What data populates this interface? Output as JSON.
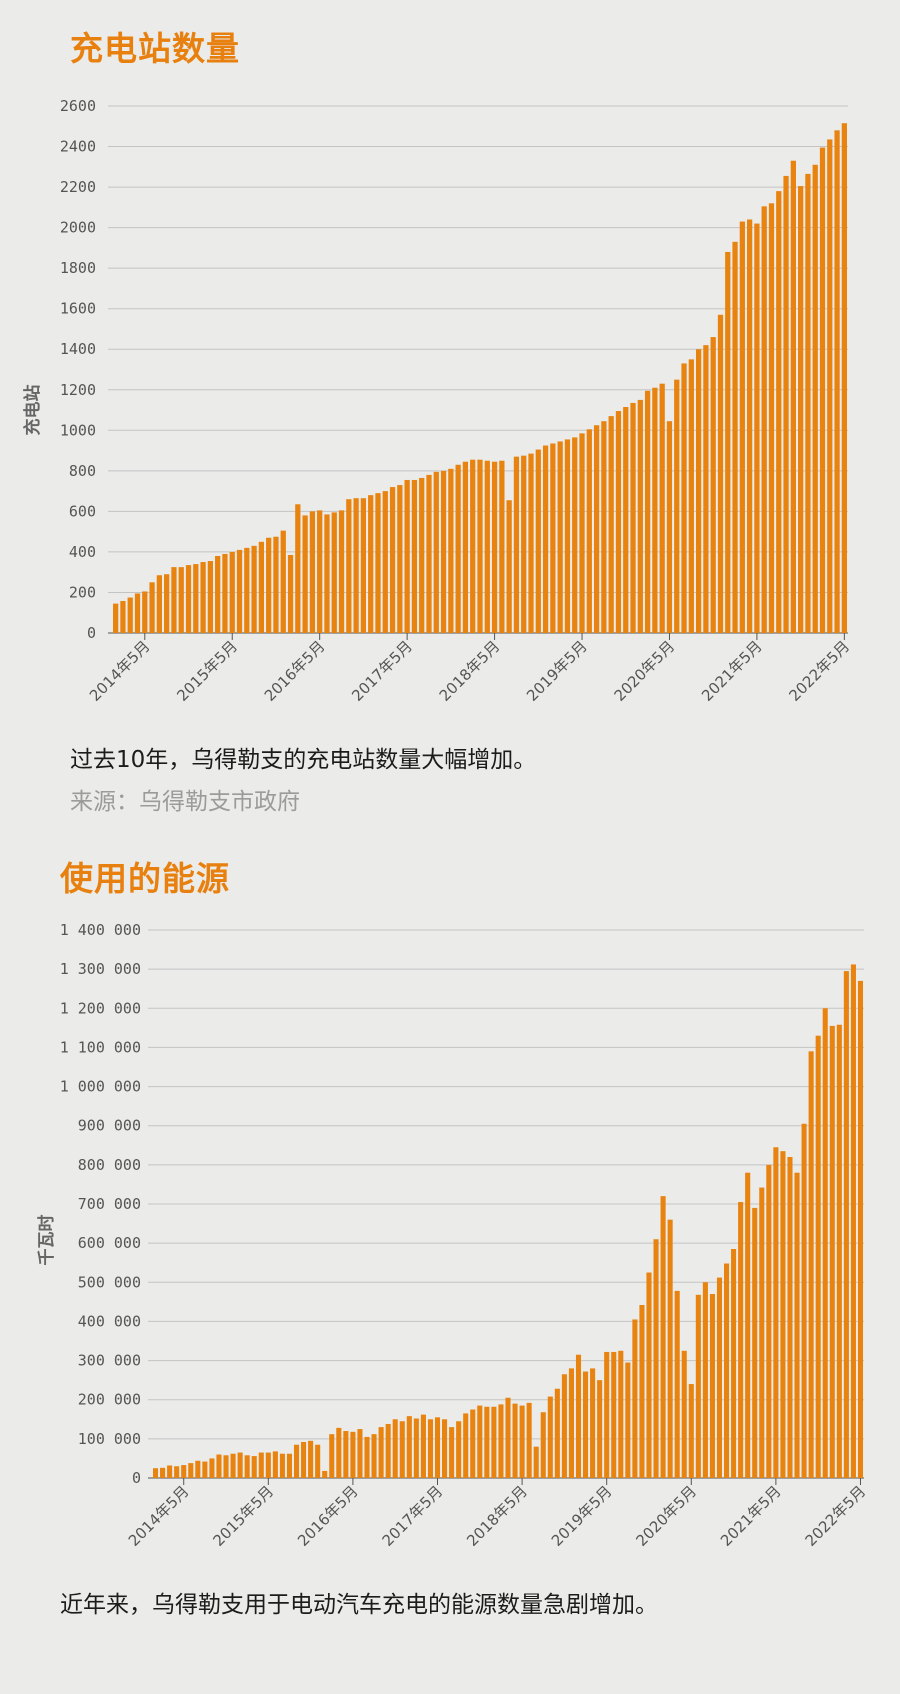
{
  "chart1": {
    "title": "充电站数量",
    "caption": "过去10年，乌得勒支的充电站数量大幅增加。",
    "source": "来源：乌得勒支市政府"
  },
  "chart2": {
    "title": "使用的能源",
    "caption": "近年来，乌得勒支用于电动汽车充电的能源数量急剧增加。"
  },
  "colors": {
    "bar": "#e8830f",
    "title": "#e8800f",
    "grid": "#c4c4c4",
    "background": "#ebebe9"
  },
  "chart_data": [
    {
      "type": "bar",
      "title": "充电站数量",
      "ylabel": "充电站",
      "xlabel": "",
      "ylim": [
        0,
        2600
      ],
      "grid": true,
      "yticks": [
        0,
        200,
        400,
        600,
        800,
        1000,
        1200,
        1400,
        1600,
        1800,
        2000,
        2200,
        2400,
        2600
      ],
      "ytick_labels": [
        "0",
        "200",
        "400",
        "600",
        "800",
        "1000",
        "1200",
        "1400",
        "1600",
        "1800",
        "2000",
        "2200",
        "2400",
        "2600"
      ],
      "xtick_labels": [
        "2014年5月",
        "2015年5月",
        "2016年5月",
        "2017年5月",
        "2018年5月",
        "2019年5月",
        "2020年5月",
        "2021年5月",
        "2022年5月"
      ],
      "first_tick_index": 4,
      "tick_interval": 12,
      "values": [
        145,
        158,
        175,
        195,
        205,
        250,
        285,
        290,
        325,
        325,
        335,
        340,
        350,
        355,
        380,
        390,
        400,
        410,
        420,
        430,
        450,
        470,
        475,
        505,
        385,
        635,
        580,
        600,
        605,
        585,
        595,
        605,
        660,
        665,
        665,
        680,
        690,
        700,
        720,
        730,
        755,
        755,
        765,
        780,
        795,
        800,
        810,
        830,
        845,
        855,
        855,
        850,
        845,
        850,
        655,
        870,
        875,
        885,
        905,
        925,
        935,
        945,
        955,
        965,
        985,
        1005,
        1025,
        1045,
        1070,
        1095,
        1115,
        1135,
        1150,
        1195,
        1210,
        1230,
        1045,
        1250,
        1330,
        1350,
        1400,
        1420,
        1460,
        1570,
        1880,
        1930,
        2030,
        2040,
        2020,
        2105,
        2120,
        2180,
        2255,
        2330,
        2205,
        2265,
        2310,
        2395,
        2435,
        2480,
        2515
      ]
    },
    {
      "type": "bar",
      "title": "使用的能源",
      "ylabel": "千瓦时",
      "xlabel": "",
      "ylim": [
        0,
        1400000
      ],
      "grid": true,
      "yticks": [
        0,
        100000,
        200000,
        300000,
        400000,
        500000,
        600000,
        700000,
        800000,
        900000,
        1000000,
        1100000,
        1200000,
        1300000,
        1400000
      ],
      "ytick_labels": [
        "0",
        "100 000",
        "200 000",
        "300 000",
        "400 000",
        "500 000",
        "600 000",
        "700 000",
        "800 000",
        "900 000",
        "1 000 000",
        "1 100 000",
        "1 200 000",
        "1 300 000",
        "1 400 000"
      ],
      "xtick_labels": [
        "2014年5月",
        "2015年5月",
        "2016年5月",
        "2017年5月",
        "2018年5月",
        "2019年5月",
        "2020年5月",
        "2021年5月",
        "2022年5月"
      ],
      "first_tick_index": 4,
      "tick_interval": 12,
      "values": [
        25000,
        26000,
        32000,
        30000,
        33000,
        38000,
        44000,
        42000,
        50000,
        60000,
        58000,
        62000,
        65000,
        58000,
        56000,
        65000,
        65000,
        68000,
        62000,
        62000,
        85000,
        92000,
        95000,
        85000,
        18000,
        112000,
        128000,
        120000,
        118000,
        125000,
        105000,
        112000,
        130000,
        138000,
        150000,
        145000,
        158000,
        152000,
        162000,
        150000,
        155000,
        150000,
        130000,
        145000,
        165000,
        175000,
        185000,
        182000,
        182000,
        188000,
        205000,
        190000,
        185000,
        192000,
        80000,
        168000,
        208000,
        228000,
        265000,
        280000,
        315000,
        272000,
        280000,
        250000,
        322000,
        322000,
        325000,
        295000,
        405000,
        442000,
        525000,
        610000,
        720000,
        660000,
        478000,
        325000,
        240000,
        468000,
        500000,
        470000,
        512000,
        548000,
        585000,
        705000,
        780000,
        690000,
        742000,
        800000,
        845000,
        835000,
        820000,
        780000,
        905000,
        1090000,
        1130000,
        1200000,
        1155000,
        1158000,
        1295000,
        1312000,
        1270000
      ]
    }
  ]
}
